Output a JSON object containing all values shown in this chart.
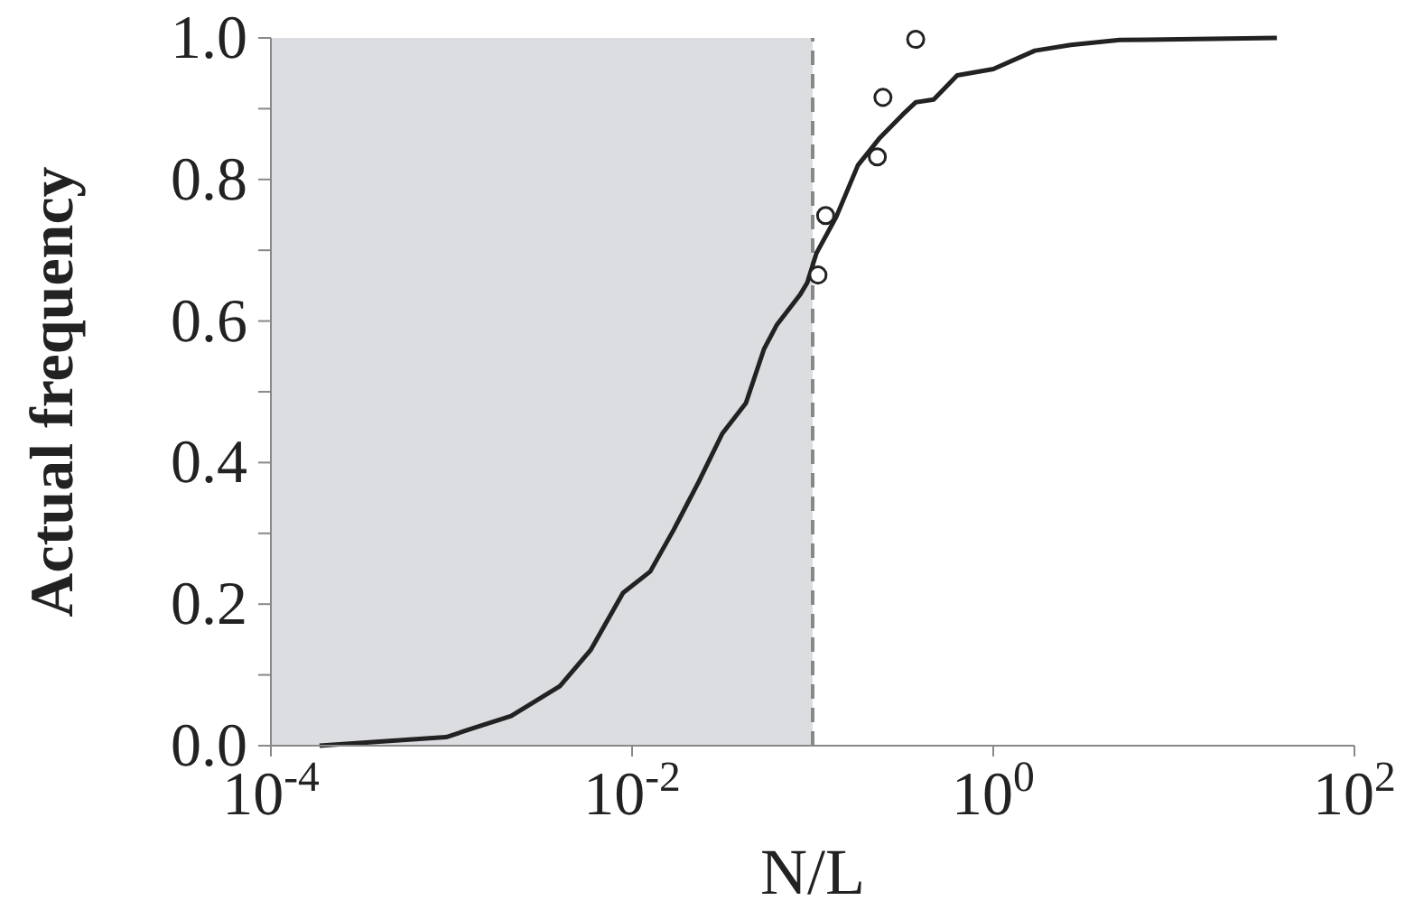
{
  "chart_data": {
    "type": "line",
    "xlabel": "N/L",
    "ylabel": "Actual frequency",
    "log": "x",
    "xlim": [
      0.0001,
      100
    ],
    "ylim": [
      0,
      1
    ],
    "xticks": [
      {
        "value": 0.0001,
        "label": "10$^{-4}$"
      },
      {
        "value": 0.01,
        "label": "10$^{-2}$"
      },
      {
        "value": 1,
        "label": "10$^{0}$"
      },
      {
        "value": 100,
        "label": "10$^{2}$"
      }
    ],
    "yticks": [
      {
        "value": 0,
        "label": "0.0"
      },
      {
        "value": 0.1,
        "label": null
      },
      {
        "value": 0.2,
        "label": "0.2"
      },
      {
        "value": 0.3,
        "label": null
      },
      {
        "value": 0.4,
        "label": "0.4"
      },
      {
        "value": 0.5,
        "label": null
      },
      {
        "value": 0.6,
        "label": "0.6"
      },
      {
        "value": 0.7,
        "label": null
      },
      {
        "value": 0.8,
        "label": "0.8"
      },
      {
        "value": 0.9,
        "label": null
      },
      {
        "value": 1,
        "label": "1.0"
      }
    ],
    "bands": [
      {
        "axis": "x",
        "from": 0.0001,
        "to": 0.1,
        "color": "#dcdde0"
      }
    ],
    "ref_lines": [
      {
        "axis": "x",
        "value": 0.1,
        "color": "#888888",
        "line_style": "dashed"
      }
    ],
    "series": [
      {
        "color": "#222222",
        "marker": "none",
        "line_style": "solid",
        "x": [
          0.000186,
          0.000933,
          0.00126,
          0.00214,
          0.00398,
          0.00589,
          0.00891,
          0.0126,
          0.017,
          0.0234,
          0.0316,
          0.0427,
          0.0537,
          0.0631,
          0.0851,
          0.0933,
          0.105,
          0.135,
          0.178,
          0.234,
          0.316,
          0.372,
          0.468,
          0.631,
          1.0,
          1.7,
          2.69,
          5.01,
          37.2
        ],
        "values": [
          0,
          0.012,
          0.023,
          0.042,
          0.084,
          0.135,
          0.216,
          0.246,
          0.305,
          0.373,
          0.441,
          0.484,
          0.56,
          0.594,
          0.637,
          0.654,
          0.696,
          0.747,
          0.82,
          0.858,
          0.892,
          0.909,
          0.913,
          0.947,
          0.956,
          0.982,
          0.99,
          0.997,
          1.0
        ]
      },
      {
        "type": "scatter",
        "color": "#222222",
        "marker": "circle",
        "x": [
          0.107,
          0.118,
          0.228,
          0.245,
          0.372
        ],
        "values": [
          0.665,
          0.749,
          0.832,
          0.916,
          0.998
        ]
      }
    ]
  }
}
